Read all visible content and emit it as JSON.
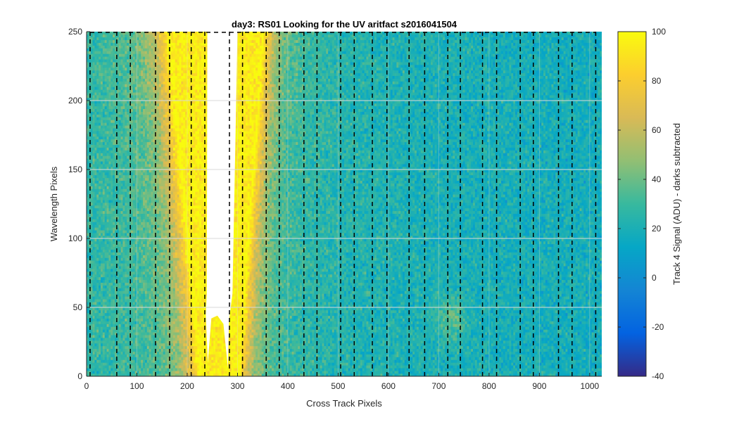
{
  "chart_data": {
    "type": "heatmap",
    "title": "day3: RS01  Looking for the UV aritfact  s2016041504",
    "xlabel": "Cross Track Pixels",
    "ylabel": "Wavelength Pixels",
    "colorbar_label": "Track 4 Signal (ADU) - darks subtracted",
    "xlim": [
      0,
      1024
    ],
    "ylim": [
      0,
      250
    ],
    "clim": [
      -40,
      100
    ],
    "colormap": "parula",
    "x_ticks": [
      0,
      100,
      200,
      300,
      400,
      500,
      600,
      700,
      800,
      900,
      1000
    ],
    "y_ticks": [
      0,
      50,
      100,
      150,
      200,
      250
    ],
    "colorbar_ticks": [
      -40,
      -20,
      0,
      20,
      40,
      60,
      80,
      100
    ],
    "grid": true,
    "background_level_adu": 18,
    "bright_band": {
      "description_left_edge_at_top_x": 165,
      "left_edge_at_bottom_x": 230,
      "right_edge_at_bottom_x": 300,
      "right_edge_at_top_x": 350,
      "peak_adu": 90
    },
    "saturated_region": {
      "x_top": [
        240,
        300
      ],
      "x_bottom": [
        245,
        285
      ],
      "y_bottom": 50,
      "secondary_peak_x": 260,
      "secondary_peak_y": 50
    },
    "faint_blob": {
      "x": 725,
      "y": 42,
      "adu": 35
    },
    "dashed_vertical_lines_x": [
      7,
      60,
      87,
      137,
      165,
      208,
      235,
      284,
      310,
      357,
      383,
      432,
      458,
      505,
      532,
      568,
      597,
      641,
      672,
      718,
      743,
      787,
      815,
      862,
      888,
      938,
      965,
      1012
    ],
    "dashed_top_boundary_y": 250
  }
}
